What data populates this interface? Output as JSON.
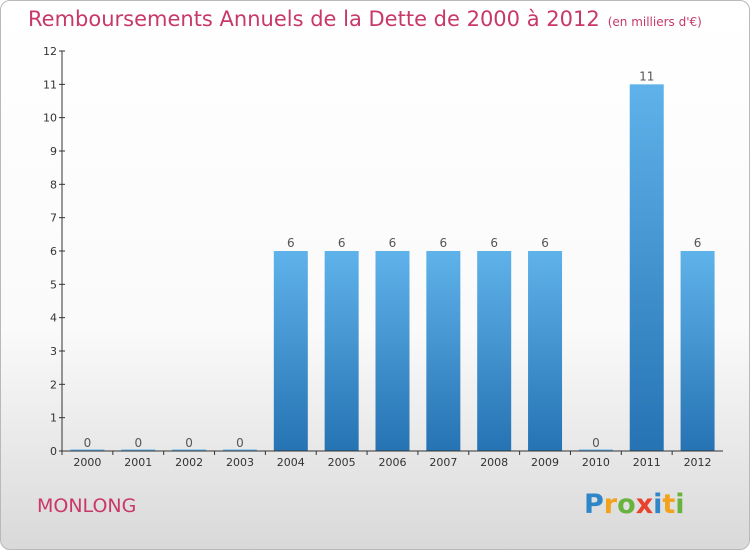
{
  "header": {
    "title": "Remboursements Annuels de la Dette de 2000 à 2012",
    "unit": "(en milliers d'€)"
  },
  "footer": {
    "commune": "MONLONG",
    "brand": [
      "P",
      "r",
      "o",
      "x",
      "i",
      "t",
      "i"
    ],
    "brand_colors": [
      "#2e86c8",
      "#f2a21b",
      "#6ab23e",
      "#e8422f",
      "#2e86c8",
      "#f2a21b",
      "#6ab23e"
    ]
  },
  "colors": {
    "title": "#c8386a",
    "bar_top": "#5fb2ea",
    "bar_bottom": "#2673b3",
    "axis": "#333333"
  },
  "chart_data": {
    "type": "bar",
    "categories": [
      "2000",
      "2001",
      "2002",
      "2003",
      "2004",
      "2005",
      "2006",
      "2007",
      "2008",
      "2009",
      "2010",
      "2011",
      "2012"
    ],
    "values": [
      0,
      0,
      0,
      0,
      6,
      6,
      6,
      6,
      6,
      6,
      0,
      11,
      6
    ],
    "title": "Remboursements Annuels de la Dette de 2000 à 2012",
    "ylim": [
      0,
      12
    ],
    "yticks": [
      0,
      1,
      2,
      3,
      4,
      5,
      6,
      7,
      8,
      9,
      10,
      11,
      12
    ],
    "grid": false
  }
}
